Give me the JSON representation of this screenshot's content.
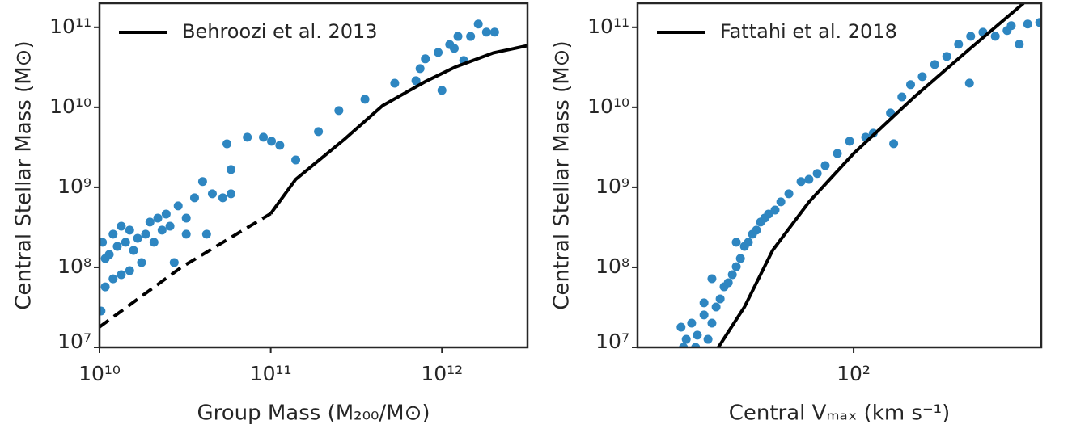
{
  "chart_data": [
    {
      "type": "scatter",
      "xlabel": "Group Mass (M₂₀₀/M⊙)",
      "ylabel": "Central Stellar Mass (M⊙)",
      "xscale": "log",
      "yscale": "log",
      "xlim": [
        10000000000.0,
        3160000000000.0
      ],
      "ylim": [
        10000000.0,
        200000000000.0
      ],
      "xticks": [
        {
          "value": 10000000000.0,
          "label": "10¹⁰"
        },
        {
          "value": 100000000000.0,
          "label": "10¹¹"
        },
        {
          "value": 1000000000000.0,
          "label": "10¹²"
        }
      ],
      "yticks": [
        {
          "value": 10000000.0,
          "label": "10⁷"
        },
        {
          "value": 100000000.0,
          "label": "10⁸"
        },
        {
          "value": 1000000000.0,
          "label": "10⁹"
        },
        {
          "value": 10000000000.0,
          "label": "10¹⁰"
        },
        {
          "value": 100000000000.0,
          "label": "10¹¹"
        }
      ],
      "legend": "upper left",
      "series": [
        {
          "color": "#2e86c1",
          "x": [
            10400000000.0,
            10800000000.0,
            11400000000.0,
            12000000000.0,
            12700000000.0,
            13400000000.0,
            14200000000.0,
            15000000000.0,
            15800000000.0,
            16700000000.0,
            18600000000.0,
            19700000000.0,
            21900000000.0,
            24500000000.0,
            25800000000.0,
            27300000000.0,
            28800000000.0,
            32100000000.0,
            35900000000.0,
            40000000000.0,
            45600000000.0,
            52500000000.0,
            58600000000.0,
            32100000000.0,
            42200000000.0,
            55500000000.0,
            58600000000.0,
            90600000000.0,
            101000000000.0,
            113000000000.0,
            140000000000.0,
            190000000000.0,
            250000000000.0,
            355000000000.0,
            530000000000.0,
            705000000000.0,
            745000000000.0,
            800000000000.0,
            950000000000.0,
            1000000000000.0,
            1110000000000.0,
            1180000000000.0,
            1240000000000.0,
            1340000000000.0,
            1470000000000.0,
            1630000000000.0,
            1820000000000.0,
            2030000000000.0,
            10800000000.0,
            12000000000.0,
            13400000000.0,
            15000000000.0,
            10200000000.0,
            17600000000.0,
            20800000000.0,
            23200000000.0,
            73000000000.0
          ],
          "values": [
            206000000.0,
            129000000.0,
            145000000.0,
            260000000.0,
            183000000.0,
            327000000.0,
            206000000.0,
            292000000.0,
            163000000.0,
            231000000.0,
            260000000.0,
            368000000.0,
            413000000.0,
            464000000.0,
            327000000.0,
            115000000.0,
            586000000.0,
            413000000.0,
            740000000.0,
            1180000000.0,
            830000000.0,
            740000000.0,
            830000000.0,
            260000000.0,
            260000000.0,
            3500000000.0,
            1670000000.0,
            4230000000.0,
            3770000000.0,
            3350000000.0,
            2200000000.0,
            4980000000.0,
            9100000000.0,
            12600000000.0,
            20000000000.0,
            21500000000.0,
            30500000000.0,
            40400000000.0,
            48600000000.0,
            16300000000.0,
            61000000000.0,
            54600000000.0,
            77000000000.0,
            38500000000.0,
            77000000000.0,
            110000000000.0,
            87000000000.0,
            87000000000.0,
            57000000.0,
            72000000.0,
            81000000.0,
            91000000.0,
            28500000.0,
            115000000.0,
            206000000.0,
            292000000.0,
            4230000000.0
          ]
        }
      ],
      "lines": [
        {
          "color": "#000000",
          "dashed": true,
          "x": [
            10000000000.0,
            30000000000.0,
            100000000000.0
          ],
          "values": [
            18000000.0,
            100000000.0,
            470000000.0
          ]
        },
        {
          "name": "Behroozi et al. 2013",
          "color": "#000000",
          "dashed": false,
          "x": [
            100000000000.0,
            140000000000.0,
            270000000000.0,
            450000000000.0,
            800000000000.0,
            1200000000000.0,
            2000000000000.0,
            3160000000000.0
          ],
          "values": [
            470000000.0,
            1260000000.0,
            4000000000.0,
            10500000000.0,
            21000000000.0,
            32000000000.0,
            48000000000.0,
            59000000000.0
          ]
        }
      ]
    },
    {
      "type": "scatter",
      "xlabel": "Central Vₘₐₓ (km s⁻¹)",
      "ylabel": "Central Stellar Mass (M⊙)",
      "xscale": "log",
      "yscale": "log",
      "xlim": [
        21.5,
        380
      ],
      "ylim": [
        10000000.0,
        200000000000.0
      ],
      "xticks": [
        {
          "value": 100,
          "label": "10²"
        }
      ],
      "yticks": [
        {
          "value": 10000000.0,
          "label": "10⁷"
        },
        {
          "value": 100000000.0,
          "label": "10⁸"
        },
        {
          "value": 1000000000.0,
          "label": "10⁹"
        },
        {
          "value": 10000000000.0,
          "label": "10¹⁰"
        },
        {
          "value": 100000000000.0,
          "label": "10¹¹"
        }
      ],
      "legend": "upper left",
      "series": [
        {
          "color": "#2e86c1",
          "x": [
            29.3,
            30.4,
            31.6,
            32.9,
            34.5,
            35.5,
            36.5,
            37.6,
            38.7,
            39.8,
            41.0,
            42.2,
            43.4,
            44.7,
            46.0,
            47.3,
            48.7,
            50.1,
            51.6,
            53.1,
            54.6,
            57.2,
            59.6,
            63.1,
            68.8,
            72.8,
            77.2,
            81.7,
            89.1,
            97.2,
            109,
            115,
            130,
            133,
            141,
            150,
            163,
            178,
            194,
            211,
            228,
            230,
            251,
            274,
            298,
            325,
            345,
            376,
            307,
            29.8,
            32.5,
            34.5,
            36.5,
            43.4
          ],
          "values": [
            17900000.0,
            12600000.0,
            20100000.0,
            14200000.0,
            25400000.0,
            12600000.0,
            20100000.0,
            32000000.0,
            40400000.0,
            57200000.0,
            64300000.0,
            81000000.0,
            102000000.0,
            129000000.0,
            183000000.0,
            206000000.0,
            260000000.0,
            292000000.0,
            368000000.0,
            413000000.0,
            464000000.0,
            521000000.0,
            658000000.0,
            830000000.0,
            1180000000.0,
            1260000000.0,
            1490000000.0,
            1870000000.0,
            2650000000.0,
            3770000000.0,
            4230000000.0,
            4750000000.0,
            8500000000.0,
            3510000000.0,
            13500000000.0,
            19200000000.0,
            24200000000.0,
            34300000000.0,
            43300000000.0,
            61400000000.0,
            20100000000.0,
            77400000000.0,
            86900000000.0,
            77400000000.0,
            91200000000.0,
            61400000000.0,
            110000000000.0,
            115000000000.0,
            105000000000.0,
            10000000.0,
            10000000.0,
            36000000.0,
            72200000.0,
            206000000.0
          ]
        }
      ],
      "lines": [
        {
          "name": "Fattahi et al. 2018",
          "color": "#000000",
          "dashed": false,
          "x": [
            38.2,
            46.0,
            56.2,
            72.9,
            100,
            154,
            230,
            335
          ],
          "values": [
            10000000.0,
            32000000.0,
            163000000.0,
            660000000.0,
            2650000000.0,
            13500000000.0,
            55000000000.0,
            200000000000.0
          ]
        }
      ]
    }
  ]
}
